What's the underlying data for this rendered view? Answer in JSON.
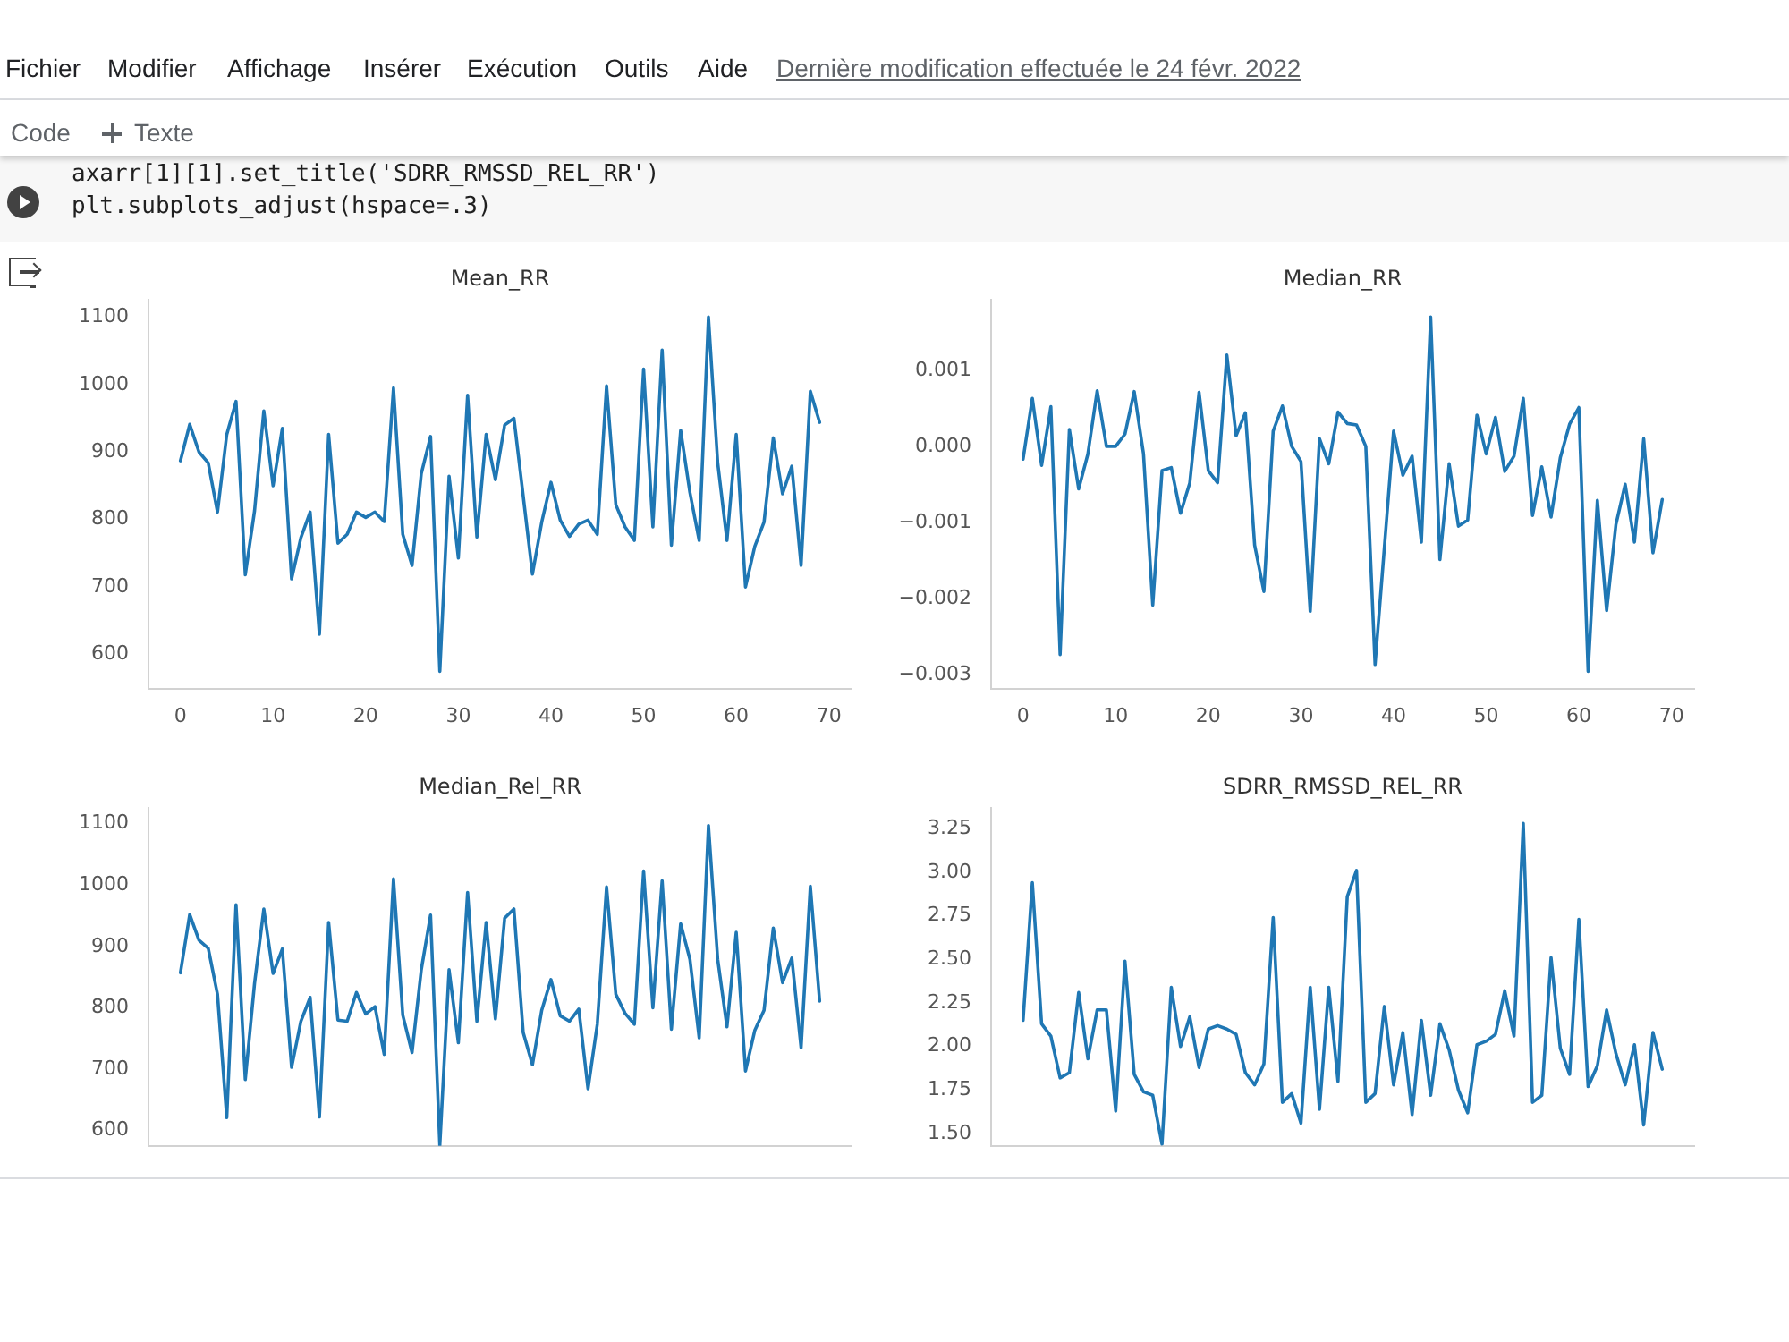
{
  "chart_data": [
    {
      "type": "other",
      "annotations": [
        "Fichier",
        "Modifier",
        "Affichage",
        "Insérer",
        "Exécution",
        "Outils",
        "Aide",
        "Dernière modification effectuée le 24 févr. 2022",
        "Code",
        "Texte",
        "axarr[1][1].set_title('SDRR_RMSSD_REL_RR')",
        "plt.subplots_adjust(hspace=.3)"
      ]
    },
    {
      "type": "line",
      "title": "Mean_RR",
      "color": "#1f77b4",
      "marker": "none",
      "x": [
        0,
        1,
        2,
        3,
        4,
        5,
        6,
        7,
        8,
        9,
        10,
        11,
        12,
        13,
        14,
        15,
        16,
        17,
        18,
        19,
        20,
        21,
        22,
        23,
        24,
        25,
        26,
        27,
        28,
        29,
        30,
        31,
        32,
        33,
        34,
        35,
        36,
        37,
        38,
        39,
        40,
        41,
        42,
        43,
        44,
        45,
        46,
        47,
        48,
        49,
        50,
        51,
        52,
        53,
        54,
        55,
        56,
        57,
        58,
        59,
        60,
        61,
        62,
        63,
        64,
        65,
        66,
        67,
        68,
        69
      ],
      "values": [
        887,
        941,
        900,
        884,
        811,
        926,
        975,
        718,
        813,
        961,
        850,
        935,
        712,
        773,
        811,
        630,
        926,
        765,
        778,
        811,
        803,
        811,
        797,
        995,
        778,
        732,
        868,
        923,
        575,
        864,
        743,
        984,
        774,
        926,
        859,
        940,
        950,
        835,
        719,
        796,
        855,
        799,
        775,
        793,
        799,
        778,
        998,
        822,
        789,
        769,
        1023,
        789,
        1051,
        762,
        932,
        840,
        769,
        1100,
        884,
        769,
        926,
        700,
        760,
        796,
        921,
        838,
        879,
        732,
        990,
        944
      ],
      "xlim": [
        -3.45,
        72.45
      ],
      "xticks": [
        0,
        10,
        20,
        30,
        40,
        50,
        60,
        70
      ],
      "ylim": [
        549,
        1126
      ],
      "yticks": [
        600,
        700,
        800,
        900,
        1000,
        1100
      ]
    },
    {
      "type": "line",
      "title": "Median_RR",
      "color": "#1f77b4",
      "marker": "none",
      "x": [
        0,
        1,
        2,
        3,
        4,
        5,
        6,
        7,
        8,
        9,
        10,
        11,
        12,
        13,
        14,
        15,
        16,
        17,
        18,
        19,
        20,
        21,
        22,
        23,
        24,
        25,
        26,
        27,
        28,
        29,
        30,
        31,
        32,
        33,
        34,
        35,
        36,
        37,
        38,
        39,
        40,
        41,
        42,
        43,
        44,
        45,
        46,
        47,
        48,
        49,
        50,
        51,
        52,
        53,
        54,
        55,
        56,
        57,
        58,
        59,
        60,
        61,
        62,
        63,
        64,
        65,
        66,
        67,
        68,
        69
      ],
      "values": [
        -0.00017,
        0.00063,
        -0.00025,
        0.00052,
        -0.00274,
        0.00022,
        -0.00056,
        -0.0001,
        0.00073,
        0,
        0,
        0.00016,
        0.00072,
        -0.0001,
        -0.00209,
        -0.00032,
        -0.00028,
        -0.00088,
        -0.00048,
        0.00071,
        -0.00032,
        -0.00048,
        0.0012,
        0.00014,
        0.00044,
        -0.0013,
        -0.00191,
        0.0002,
        0.00053,
        0,
        -0.0002,
        -0.00217,
        0.0001,
        -0.00023,
        0.00045,
        0.0003,
        0.00028,
        0,
        -0.00287,
        -0.00134,
        0.0002,
        -0.00038,
        -0.00013,
        -0.00126,
        0.0017,
        -0.00149,
        -0.00023,
        -0.00105,
        -0.00097,
        0.00041,
        -0.0001,
        0.00038,
        -0.00033,
        -0.00013,
        0.00063,
        -0.00091,
        -0.00027,
        -0.00093,
        -0.00015,
        0.00029,
        0.00051,
        -0.00296,
        -0.00071,
        -0.00216,
        -0.00103,
        -0.0005,
        -0.00126,
        0.0001,
        -0.0014,
        -0.0007
      ],
      "xlim": [
        -3.45,
        72.45
      ],
      "xticks": [
        0,
        10,
        20,
        30,
        40,
        50,
        60,
        70
      ],
      "ylim": [
        -0.00319,
        0.00193
      ],
      "yticks": [
        {
          "value": -0.003,
          "label": "−0.003"
        },
        {
          "value": -0.002,
          "label": "−0.002"
        },
        {
          "value": -0.001,
          "label": "−0.001"
        },
        {
          "value": 0,
          "label": "0.000"
        },
        0.001
      ]
    },
    {
      "type": "line",
      "title": "Median_Rel_RR",
      "color": "#1f77b4",
      "marker": "none",
      "tick_labels": "y",
      "x": [
        0,
        1,
        2,
        3,
        4,
        5,
        6,
        7,
        8,
        9,
        10,
        11,
        12,
        13,
        14,
        15,
        16,
        17,
        18,
        19,
        20,
        21,
        22,
        23,
        24,
        25,
        26,
        27,
        28,
        29,
        30,
        31,
        32,
        33,
        34,
        35,
        36,
        37,
        38,
        39,
        40,
        41,
        42,
        43,
        44,
        45,
        46,
        47,
        48,
        49,
        50,
        51,
        52,
        53,
        54,
        55,
        56,
        57,
        58,
        59,
        60,
        61,
        62,
        63,
        64,
        65,
        66,
        67,
        68,
        69
      ],
      "values": [
        857,
        952,
        910,
        897,
        822,
        621,
        968,
        683,
        840,
        961,
        856,
        896,
        703,
        778,
        817,
        622,
        939,
        780,
        778,
        825,
        790,
        802,
        724,
        1010,
        788,
        727,
        862,
        951,
        576,
        862,
        743,
        988,
        778,
        939,
        782,
        946,
        961,
        760,
        707,
        796,
        846,
        787,
        778,
        798,
        668,
        773,
        997,
        822,
        791,
        773,
        1023,
        800,
        1007,
        765,
        937,
        879,
        751,
        1097,
        879,
        769,
        923,
        697,
        763,
        796,
        930,
        841,
        881,
        735,
        998,
        811
      ],
      "xlim": [
        -3.45,
        72.45
      ],
      "xticks": [
        0,
        10,
        20,
        30,
        40,
        50,
        60,
        70
      ],
      "ylim": [
        575,
        1126
      ],
      "yticks": [
        600,
        700,
        800,
        900,
        1000,
        1100
      ]
    },
    {
      "type": "line",
      "title": "SDRR_RMSSD_REL_RR",
      "color": "#1f77b4",
      "marker": "none",
      "tick_labels": "y",
      "x": [
        0,
        1,
        2,
        3,
        4,
        5,
        6,
        7,
        8,
        9,
        10,
        11,
        12,
        13,
        14,
        15,
        16,
        17,
        18,
        19,
        20,
        21,
        22,
        23,
        24,
        25,
        26,
        27,
        28,
        29,
        30,
        31,
        32,
        33,
        34,
        35,
        36,
        37,
        38,
        39,
        40,
        41,
        42,
        43,
        44,
        45,
        46,
        47,
        48,
        49,
        50,
        51,
        52,
        53,
        54,
        55,
        56,
        57,
        58,
        59,
        60,
        61,
        62,
        63,
        64,
        65,
        66,
        67,
        68,
        69
      ],
      "values": [
        2.15,
        2.94,
        2.13,
        2.06,
        1.82,
        1.85,
        2.31,
        1.93,
        2.21,
        2.21,
        1.63,
        2.49,
        1.84,
        1.74,
        1.72,
        1.44,
        2.34,
        2.0,
        2.17,
        1.88,
        2.1,
        2.12,
        2.1,
        2.07,
        1.85,
        1.78,
        1.9,
        2.74,
        1.68,
        1.73,
        1.56,
        2.34,
        1.64,
        2.34,
        1.8,
        2.86,
        3.01,
        1.68,
        1.73,
        2.23,
        1.78,
        2.08,
        1.61,
        2.15,
        1.72,
        2.13,
        1.98,
        1.75,
        1.62,
        2.01,
        2.03,
        2.07,
        2.32,
        2.06,
        3.28,
        1.68,
        1.72,
        2.51,
        1.99,
        1.84,
        2.73,
        1.77,
        1.89,
        2.21,
        1.96,
        1.78,
        2.01,
        1.55,
        2.08,
        1.87
      ],
      "xlim": [
        -3.45,
        72.45
      ],
      "xticks": [
        0,
        10,
        20,
        30,
        40,
        50,
        60,
        70
      ],
      "ylim": [
        1.43,
        3.37
      ],
      "yticks": [
        {
          "value": 1.5,
          "label": "1.50"
        },
        1.75,
        {
          "value": 2,
          "label": "2.00"
        },
        2.25,
        {
          "value": 2.5,
          "label": "2.50"
        },
        2.75,
        {
          "value": 3,
          "label": "3.00"
        },
        3.25
      ]
    }
  ]
}
